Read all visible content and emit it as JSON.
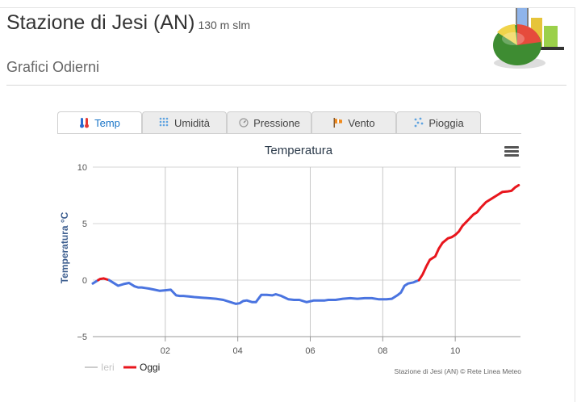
{
  "header": {
    "station": "Stazione di Jesi (AN)",
    "altitude": "130 m slm",
    "section": "Grafici Odierni"
  },
  "tabs": [
    {
      "label": "Temp",
      "icon": "thermometer-icon",
      "active": true
    },
    {
      "label": "Umidità",
      "icon": "humidity-icon",
      "active": false
    },
    {
      "label": "Pressione",
      "icon": "pressure-gauge-icon",
      "active": false
    },
    {
      "label": "Vento",
      "icon": "wind-flag-icon",
      "active": false
    },
    {
      "label": "Pioggia",
      "icon": "rain-drops-icon",
      "active": false
    }
  ],
  "chart_data": {
    "type": "line",
    "title": "Temperatura",
    "xlabel": "",
    "ylabel": "Temperatura °C",
    "xlim": [
      0,
      11.8
    ],
    "ylim": [
      -5,
      10
    ],
    "x_ticks": [
      2,
      4,
      6,
      8,
      10
    ],
    "x_tick_labels": [
      "02",
      "04",
      "06",
      "08",
      "10"
    ],
    "y_ticks": [
      -5,
      0,
      5,
      10
    ],
    "y_tick_labels": [
      "−5",
      "0",
      "5",
      "10"
    ],
    "grid": true,
    "legend_position": "bottom-left",
    "credits": "Stazione di Jesi (AN) © Rete Linea Meteo",
    "series": [
      {
        "name": "Ieri",
        "color": "#cccccc",
        "hidden": true,
        "x": [],
        "y": []
      },
      {
        "name": "Oggi",
        "color": "#e8161d",
        "below_zero_color": "#4a74e0",
        "x": [
          0.0,
          0.1,
          0.2,
          0.3,
          0.45,
          0.55,
          0.7,
          0.85,
          1.0,
          1.15,
          1.25,
          1.35,
          1.45,
          1.55,
          1.7,
          1.85,
          2.0,
          2.15,
          2.3,
          2.4,
          2.5,
          2.65,
          2.8,
          3.0,
          3.2,
          3.4,
          3.6,
          3.8,
          3.95,
          4.05,
          4.15,
          4.25,
          4.4,
          4.5,
          4.65,
          4.8,
          4.95,
          5.05,
          5.2,
          5.4,
          5.55,
          5.7,
          5.9,
          6.1,
          6.3,
          6.4,
          6.5,
          6.7,
          6.9,
          7.1,
          7.3,
          7.5,
          7.7,
          7.9,
          8.1,
          8.25,
          8.4,
          8.5,
          8.6,
          8.7,
          8.85,
          9.0,
          9.1,
          9.2,
          9.3,
          9.45,
          9.55,
          9.65,
          9.8,
          9.9,
          10.0,
          10.1,
          10.2,
          10.35,
          10.5,
          10.6,
          10.7,
          10.85,
          11.0,
          11.15,
          11.3,
          11.45,
          11.55,
          11.65,
          11.75
        ],
        "y": [
          -0.3,
          -0.1,
          0.1,
          0.15,
          0.0,
          -0.2,
          -0.5,
          -0.35,
          -0.25,
          -0.55,
          -0.65,
          -0.65,
          -0.7,
          -0.75,
          -0.85,
          -0.95,
          -0.9,
          -0.85,
          -1.35,
          -1.4,
          -1.4,
          -1.45,
          -1.5,
          -1.55,
          -1.6,
          -1.65,
          -1.75,
          -1.95,
          -2.1,
          -2.05,
          -1.85,
          -1.8,
          -1.95,
          -1.95,
          -1.3,
          -1.3,
          -1.35,
          -1.25,
          -1.4,
          -1.7,
          -1.75,
          -1.75,
          -1.95,
          -1.8,
          -1.8,
          -1.8,
          -1.75,
          -1.75,
          -1.65,
          -1.6,
          -1.65,
          -1.6,
          -1.6,
          -1.7,
          -1.7,
          -1.65,
          -1.35,
          -1.1,
          -0.5,
          -0.3,
          -0.2,
          0.0,
          0.5,
          1.2,
          1.8,
          2.1,
          2.8,
          3.3,
          3.7,
          3.8,
          4.0,
          4.3,
          4.8,
          5.3,
          5.8,
          6.0,
          6.4,
          6.9,
          7.2,
          7.5,
          7.8,
          7.85,
          7.9,
          8.2,
          8.4
        ]
      }
    ]
  }
}
